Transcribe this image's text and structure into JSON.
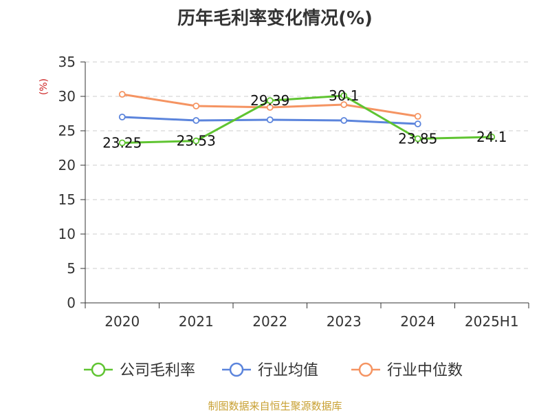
{
  "title": "历年毛利率变化情况(%)",
  "source_note": "制图数据来自恒生聚源数据库",
  "chart_data": {
    "type": "line",
    "title": "历年毛利率变化情况(%)",
    "ylabel": "(%)",
    "xlabel": "",
    "categories": [
      "2020",
      "2021",
      "2022",
      "2023",
      "2024",
      "2025H1"
    ],
    "ylim": [
      0,
      35
    ],
    "yticks": [
      0,
      5,
      10,
      15,
      20,
      25,
      30,
      35
    ],
    "grid": true,
    "legend_position": "bottom",
    "series": [
      {
        "name": "公司毛利率",
        "color": "#5fc431",
        "values": [
          23.25,
          23.53,
          29.39,
          30.1,
          23.85,
          24.1
        ],
        "labels": [
          "23.25",
          "23.53",
          "29.39",
          "30.1",
          "23.85",
          "24.1"
        ],
        "show_labels": true
      },
      {
        "name": "行业均值",
        "color": "#5b84dc",
        "values": [
          27.0,
          26.5,
          26.6,
          26.5,
          26.0,
          null
        ],
        "show_labels": false
      },
      {
        "name": "行业中位数",
        "color": "#f59462",
        "values": [
          30.3,
          28.6,
          28.4,
          28.8,
          27.1,
          null
        ],
        "show_labels": false
      }
    ]
  }
}
